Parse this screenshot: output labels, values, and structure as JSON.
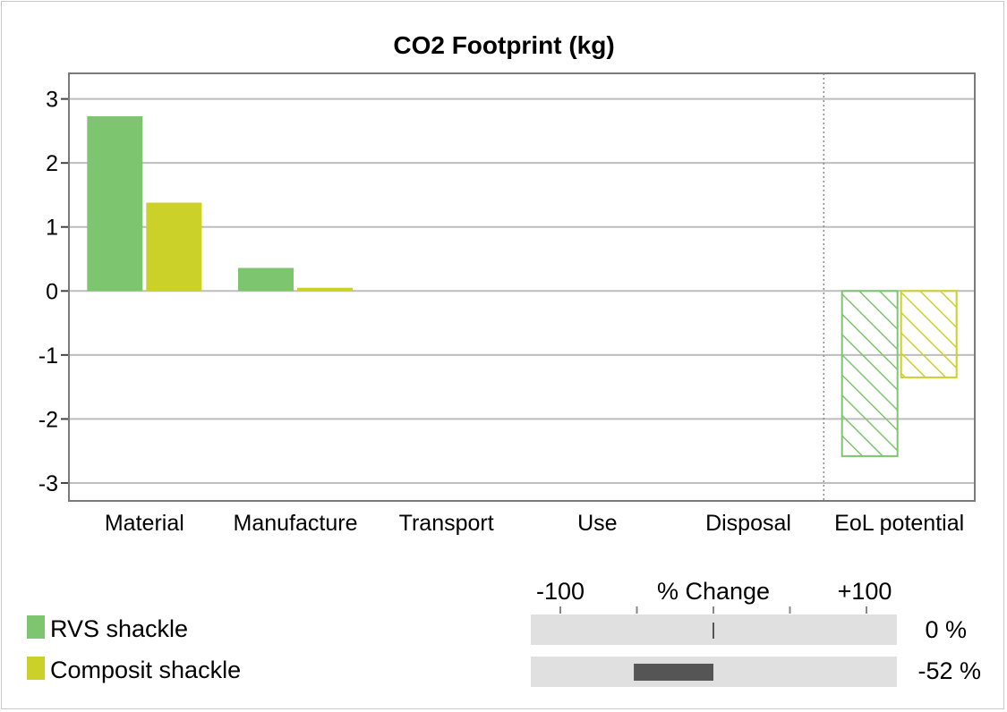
{
  "chart_data": {
    "type": "bar",
    "title": "CO2 Footprint (kg)",
    "xlabel": "",
    "ylabel": "",
    "categories": [
      "Material",
      "Manufacture",
      "Transport",
      "Use",
      "Disposal",
      "EoL potential"
    ],
    "ylim": [
      -3.28,
      3.4
    ],
    "yticks": [
      3,
      2,
      1,
      0,
      -1,
      -2,
      -3
    ],
    "ytick_labels": [
      "3",
      "2",
      "1",
      "0",
      "-1",
      "-2",
      "-3"
    ],
    "grid": true,
    "series": [
      {
        "name": "RVS shackle",
        "color": "#7dc56f",
        "values": [
          2.73,
          0.36,
          0,
          0,
          0,
          -2.58
        ]
      },
      {
        "name": "Composit shackle",
        "color": "#ccd12a",
        "values": [
          1.38,
          0.05,
          0,
          0,
          0,
          -1.35
        ]
      }
    ],
    "hatched_categories": [
      "EoL potential"
    ],
    "separator_before_category": "EoL potential"
  },
  "percent_change": {
    "label": "% Change",
    "min_label": "-100",
    "max_label": "+100",
    "range": [
      -100,
      100
    ],
    "rows": [
      {
        "series": "RVS shackle",
        "value": 0,
        "value_label": "0 %"
      },
      {
        "series": "Composit shackle",
        "value": -52,
        "value_label": "-52 %"
      }
    ]
  },
  "legend": [
    {
      "label": "RVS shackle",
      "color": "#7dc56f"
    },
    {
      "label": "Composit shackle",
      "color": "#ccd12a"
    }
  ]
}
